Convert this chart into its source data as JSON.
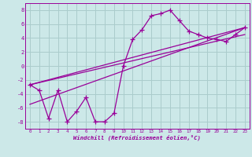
{
  "xlabel": "Windchill (Refroidissement éolien,°C)",
  "background_color": "#cce8e8",
  "grid_color": "#aacccc",
  "line_color": "#990099",
  "xlim": [
    -0.5,
    23.5
  ],
  "ylim": [
    -9,
    9
  ],
  "xticks": [
    0,
    1,
    2,
    3,
    4,
    5,
    6,
    7,
    8,
    9,
    10,
    11,
    12,
    13,
    14,
    15,
    16,
    17,
    18,
    19,
    20,
    21,
    22,
    23
  ],
  "yticks": [
    -8,
    -6,
    -4,
    -2,
    0,
    2,
    4,
    6,
    8
  ],
  "series1_x": [
    0,
    1,
    2,
    3,
    4,
    5,
    6,
    7,
    8,
    9,
    10,
    11,
    12,
    13,
    14,
    15,
    16,
    17,
    18,
    19,
    20,
    21,
    22,
    23
  ],
  "series1_y": [
    -2.7,
    -3.5,
    -7.5,
    -3.5,
    -8.0,
    -6.5,
    -4.5,
    -8.0,
    -8.0,
    -6.8,
    0.0,
    3.8,
    5.2,
    7.2,
    7.5,
    8.0,
    6.5,
    5.0,
    4.5,
    4.0,
    3.8,
    3.5,
    4.5,
    5.5
  ],
  "line1_x": [
    0,
    23
  ],
  "line1_y": [
    -2.7,
    5.5
  ],
  "line2_x": [
    0,
    23
  ],
  "line2_y": [
    -5.5,
    5.5
  ],
  "line3_x": [
    0,
    23
  ],
  "line3_y": [
    -2.7,
    4.5
  ]
}
